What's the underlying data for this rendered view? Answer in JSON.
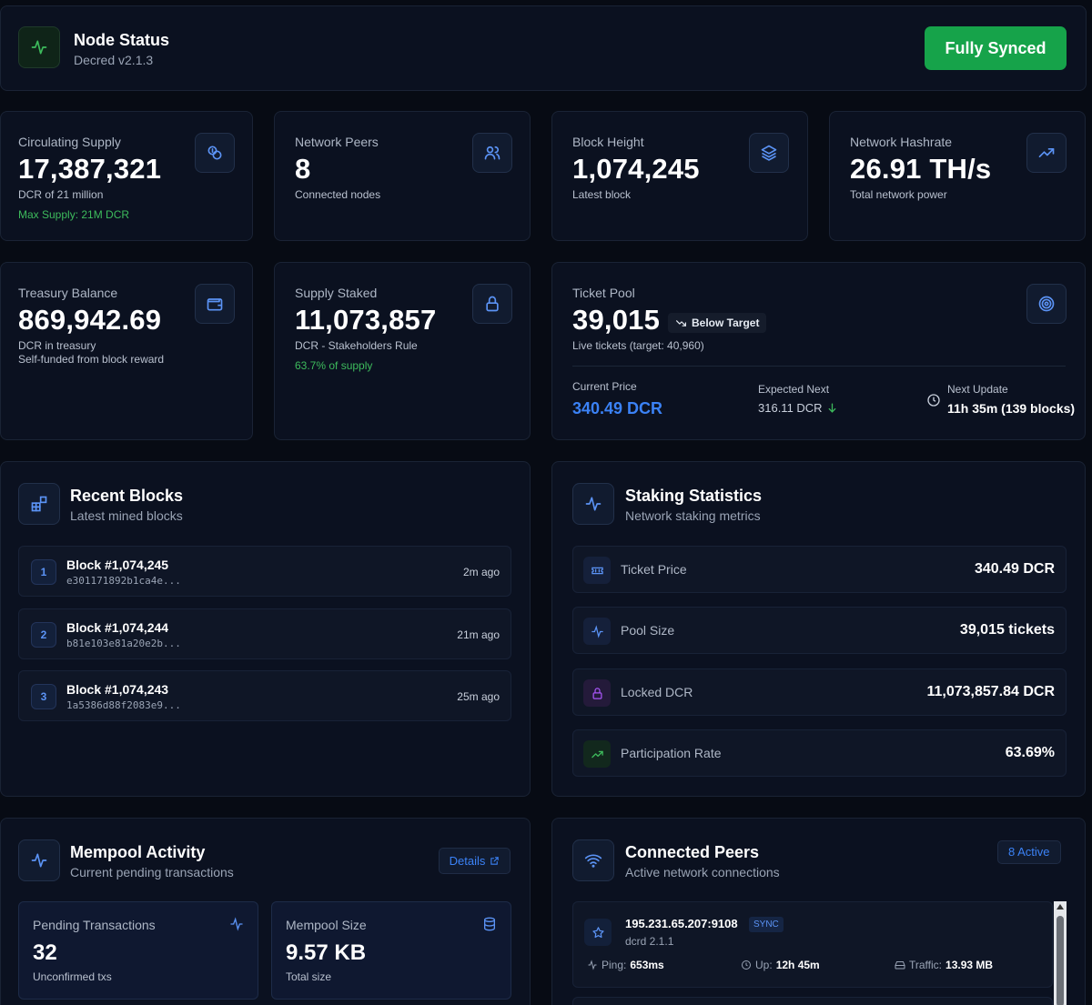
{
  "header": {
    "title": "Node Status",
    "version": "Decred v2.1.3",
    "sync_button": "Fully Synced"
  },
  "stats": {
    "circulating": {
      "label": "Circulating Supply",
      "value": "17,387,321",
      "sub": "DCR of 21 million",
      "note": "Max Supply: 21M DCR"
    },
    "peers": {
      "label": "Network Peers",
      "value": "8",
      "sub": "Connected nodes"
    },
    "height": {
      "label": "Block Height",
      "value": "1,074,245",
      "sub": "Latest block"
    },
    "hashrate": {
      "label": "Network Hashrate",
      "value": "26.91 TH/s",
      "sub": "Total network power"
    },
    "treasury": {
      "label": "Treasury Balance",
      "value": "869,942.69",
      "sub": "DCR in treasury",
      "note": "Self-funded from block reward"
    },
    "staked": {
      "label": "Supply Staked",
      "value": "11,073,857",
      "sub": "DCR - Stakeholders Rule",
      "note": "63.7% of supply"
    }
  },
  "ticket_pool": {
    "label": "Ticket Pool",
    "value": "39,015",
    "badge": "Below Target",
    "sub": "Live tickets (target: 40,960)",
    "current_price_label": "Current Price",
    "current_price": "340.49 DCR",
    "expected_label": "Expected Next",
    "expected_value": "316.11 DCR",
    "next_update_label": "Next Update",
    "next_update_value": "11h 35m (139 blocks)"
  },
  "recent_blocks": {
    "title": "Recent Blocks",
    "subtitle": "Latest mined blocks",
    "items": [
      {
        "num": "1",
        "name": "Block #1,074,245",
        "hash": "e301171892b1ca4e...",
        "time": "2m ago"
      },
      {
        "num": "2",
        "name": "Block #1,074,244",
        "hash": "b81e103e81a20e2b...",
        "time": "21m ago"
      },
      {
        "num": "3",
        "name": "Block #1,074,243",
        "hash": "1a5386d88f2083e9...",
        "time": "25m ago"
      }
    ]
  },
  "staking": {
    "title": "Staking Statistics",
    "subtitle": "Network staking metrics",
    "items": [
      {
        "label": "Ticket Price",
        "value": "340.49 DCR"
      },
      {
        "label": "Pool Size",
        "value": "39,015 tickets"
      },
      {
        "label": "Locked DCR",
        "value": "11,073,857.84 DCR"
      },
      {
        "label": "Participation Rate",
        "value": "63.69%"
      }
    ]
  },
  "mempool": {
    "title": "Mempool Activity",
    "subtitle": "Current pending transactions",
    "details": "Details",
    "pending_label": "Pending Transactions",
    "pending_value": "32",
    "pending_sub": "Unconfirmed txs",
    "size_label": "Mempool Size",
    "size_value": "9.57 KB",
    "size_sub": "Total size"
  },
  "peers": {
    "title": "Connected Peers",
    "subtitle": "Active network connections",
    "active_badge": "8 Active",
    "first": {
      "addr": "195.231.65.207:9108",
      "tag": "SYNC",
      "version": "dcrd 2.1.1",
      "ping_label": "Ping:",
      "ping": "653ms",
      "up_label": "Up:",
      "up": "12h 45m",
      "traffic_label": "Traffic:",
      "traffic": "13.93 MB"
    }
  },
  "colors": {
    "accent": "#3b82f6",
    "success": "#16a34a",
    "bg": "#070b14"
  }
}
